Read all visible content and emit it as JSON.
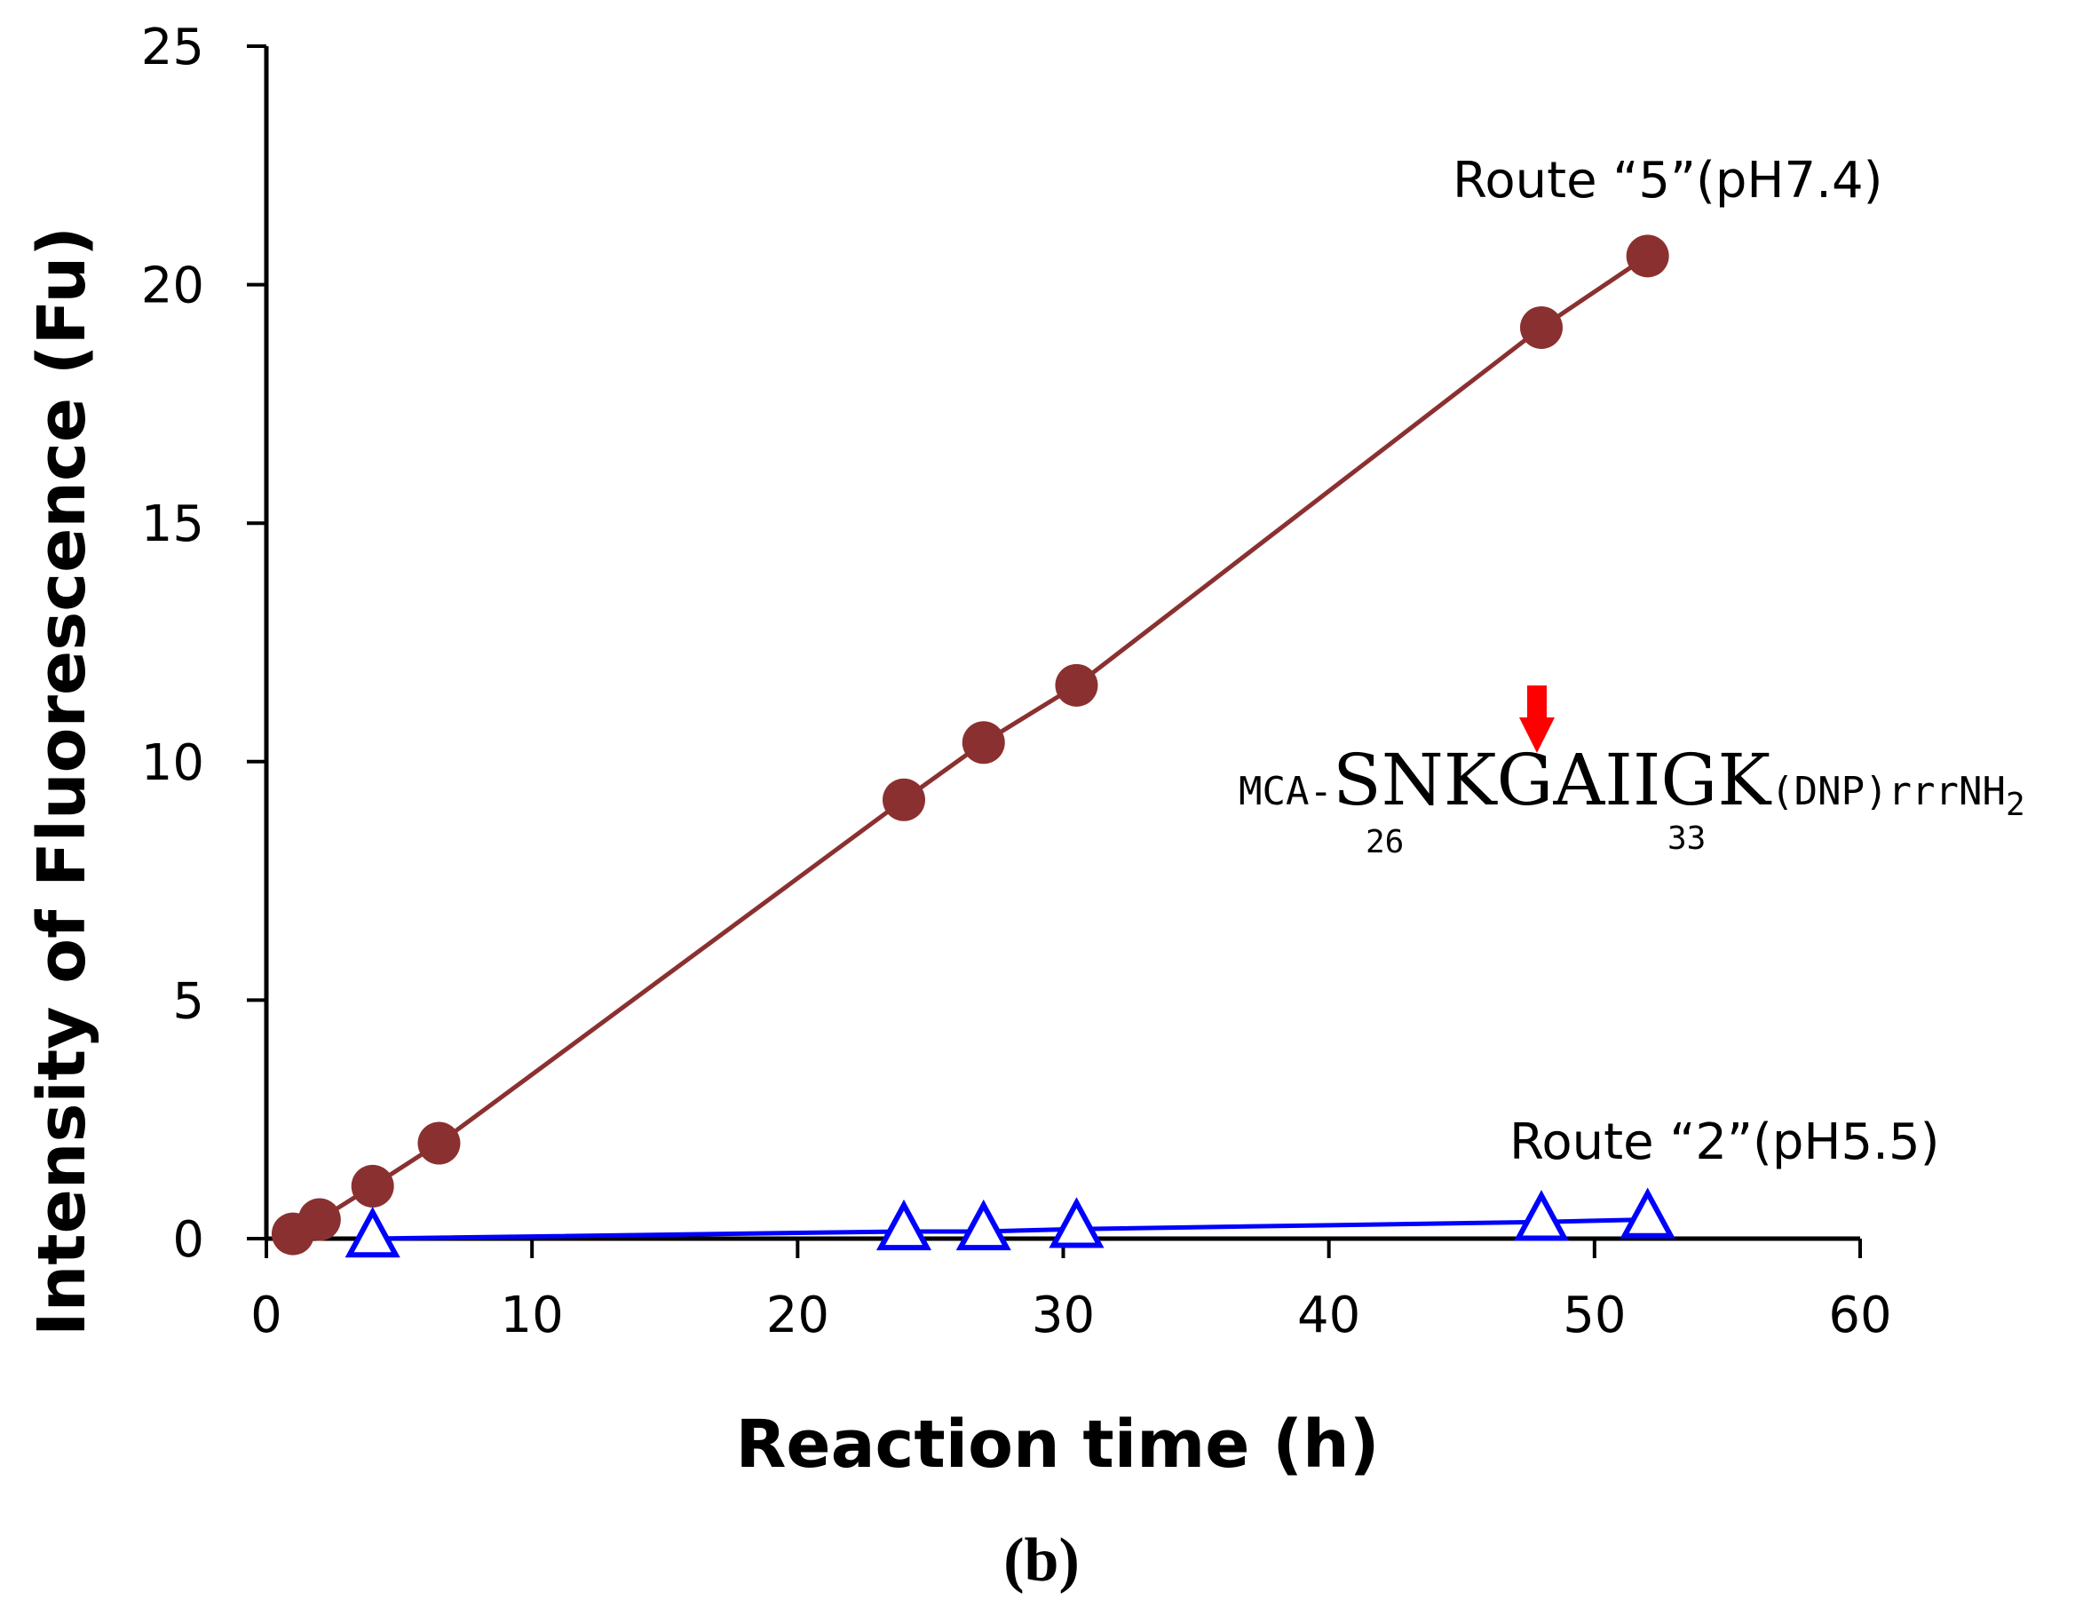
{
  "chart_data": {
    "type": "line",
    "xlabel": "Reaction time (h)",
    "ylabel": "Intensity of Fluorescence (Fu)",
    "xlim": [
      0,
      60
    ],
    "ylim": [
      0,
      25
    ],
    "xticks": [
      0,
      10,
      20,
      30,
      40,
      50,
      60
    ],
    "yticks": [
      0,
      5,
      10,
      15,
      20,
      25
    ],
    "grid": false,
    "series": [
      {
        "name": "Route “5”(pH7.4)",
        "marker": "filled-circle",
        "color": "#8B3030",
        "x": [
          1,
          2,
          4,
          6.5,
          24,
          27,
          30.5,
          48,
          52
        ],
        "y": [
          0.1,
          0.4,
          1.1,
          2.0,
          9.2,
          10.4,
          11.6,
          19.1,
          20.6
        ]
      },
      {
        "name": "Route “2”(pH5.5)",
        "marker": "open-triangle",
        "color": "#0000FF",
        "x": [
          4,
          24,
          27,
          30.5,
          48,
          52
        ],
        "y": [
          0.0,
          0.15,
          0.15,
          0.2,
          0.35,
          0.4
        ]
      }
    ],
    "annotation": {
      "prefix": "MCA-",
      "sequence_left": "SNKG",
      "sequence_right": "AIIGK",
      "suffix": "(DNP)rrrNH",
      "suffix_subscript": "2",
      "start_index": "26",
      "end_index": "33",
      "cleavage_arrow_color": "#FF0000"
    },
    "panel_label": "(b)"
  }
}
